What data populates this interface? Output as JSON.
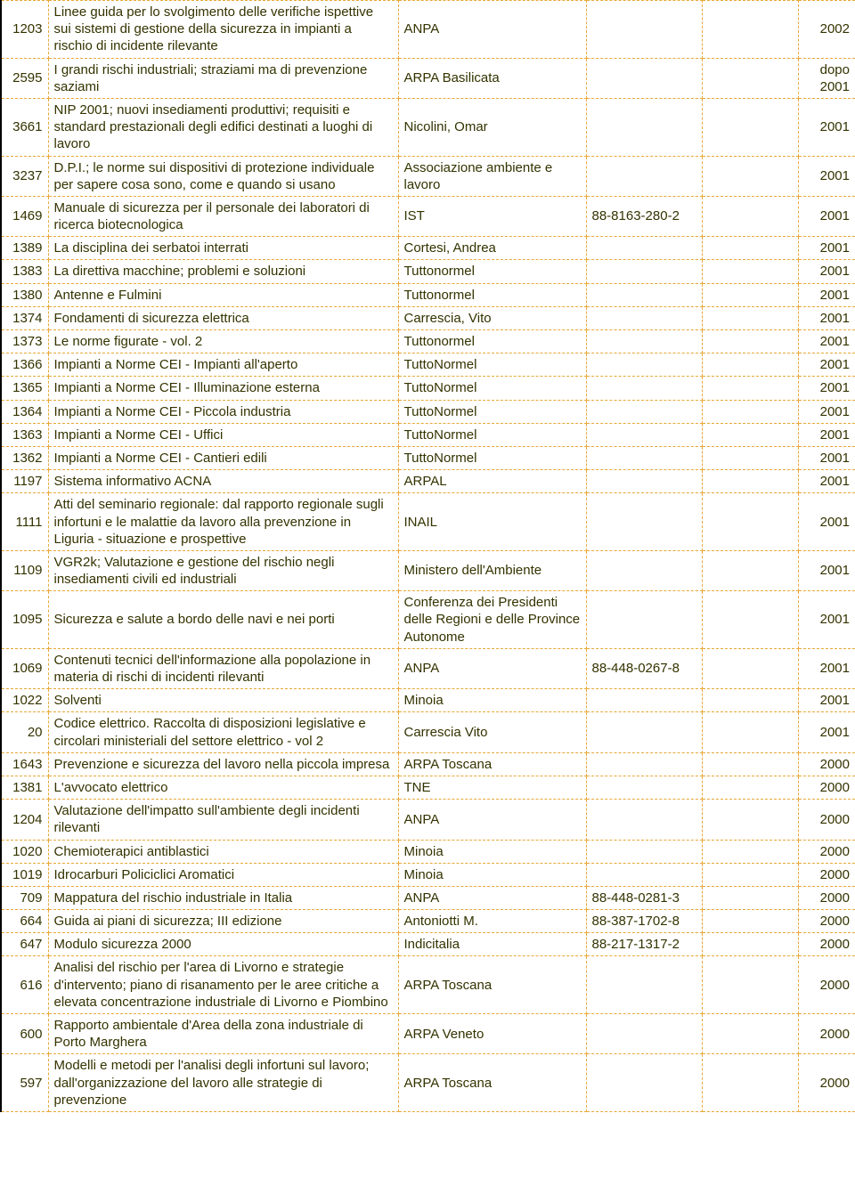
{
  "rows": [
    {
      "id": "1203",
      "title": "Linee guida per lo svolgimento delle verifiche ispettive sui sistemi di gestione della sicurezza in impianti a rischio di incidente rilevante",
      "author": "ANPA",
      "code": "",
      "extra": "",
      "year": "2002"
    },
    {
      "id": "2595",
      "title": "I grandi rischi industriali; straziami ma di prevenzione saziami",
      "author": "ARPA Basilicata",
      "code": "",
      "extra": "",
      "year": "dopo 2001"
    },
    {
      "id": "3661",
      "title": "NIP 2001; nuovi insediamenti produttivi; requisiti e standard prestazionali degli edifici destinati a luoghi di lavoro",
      "author": "Nicolini, Omar",
      "code": "",
      "extra": "",
      "year": "2001"
    },
    {
      "id": "3237",
      "title": "D.P.I.; le norme sui dispositivi di protezione individuale per sapere cosa sono, come e quando si usano",
      "author": "Associazione ambiente e lavoro",
      "code": "",
      "extra": "",
      "year": "2001"
    },
    {
      "id": "1469",
      "title": "Manuale di sicurezza per il personale dei laboratori di ricerca biotecnologica",
      "author": "IST",
      "code": "88-8163-280-2",
      "extra": "",
      "year": "2001"
    },
    {
      "id": "1389",
      "title": "La disciplina dei serbatoi interrati",
      "author": "Cortesi, Andrea",
      "code": "",
      "extra": "",
      "year": "2001"
    },
    {
      "id": "1383",
      "title": "La direttiva macchine; problemi e soluzioni",
      "author": "Tuttonormel",
      "code": "",
      "extra": "",
      "year": "2001"
    },
    {
      "id": "1380",
      "title": "Antenne e Fulmini",
      "author": "Tuttonormel",
      "code": "",
      "extra": "",
      "year": "2001"
    },
    {
      "id": "1374",
      "title": "Fondamenti di sicurezza elettrica",
      "author": "Carrescia, Vito",
      "code": "",
      "extra": "",
      "year": "2001"
    },
    {
      "id": "1373",
      "title": "Le norme figurate - vol. 2",
      "author": "Tuttonormel",
      "code": "",
      "extra": "",
      "year": "2001"
    },
    {
      "id": "1366",
      "title": "Impianti a Norme CEI - Impianti all'aperto",
      "author": "TuttoNormel",
      "code": "",
      "extra": "",
      "year": "2001"
    },
    {
      "id": "1365",
      "title": "Impianti a Norme CEI - Illuminazione esterna",
      "author": "TuttoNormel",
      "code": "",
      "extra": "",
      "year": "2001"
    },
    {
      "id": "1364",
      "title": "Impianti a Norme CEI - Piccola industria",
      "author": "TuttoNormel",
      "code": "",
      "extra": "",
      "year": "2001"
    },
    {
      "id": "1363",
      "title": "Impianti a Norme CEI - Uffici",
      "author": "TuttoNormel",
      "code": "",
      "extra": "",
      "year": "2001"
    },
    {
      "id": "1362",
      "title": "Impianti a Norme CEI - Cantieri edili",
      "author": "TuttoNormel",
      "code": "",
      "extra": "",
      "year": "2001"
    },
    {
      "id": "1197",
      "title": "Sistema informativo ACNA",
      "author": "ARPAL",
      "code": "",
      "extra": "",
      "year": "2001"
    },
    {
      "id": "1111",
      "title": "Atti del seminario regionale: dal rapporto regionale sugli infortuni e le malattie da lavoro alla prevenzione in Liguria - situazione e prospettive",
      "author": "INAIL",
      "code": "",
      "extra": "",
      "year": "2001"
    },
    {
      "id": "1109",
      "title": "VGR2k; Valutazione e gestione del rischio negli insediamenti civili ed industriali",
      "author": "Ministero dell'Ambiente",
      "code": "",
      "extra": "",
      "year": "2001"
    },
    {
      "id": "1095",
      "title": "Sicurezza e salute a bordo delle navi e nei porti",
      "author": "Conferenza dei Presidenti delle Regioni e delle Province Autonome",
      "code": "",
      "extra": "",
      "year": "2001"
    },
    {
      "id": "1069",
      "title": "Contenuti tecnici dell'informazione alla popolazione in materia di rischi di incidenti rilevanti",
      "author": "ANPA",
      "code": "88-448-0267-8",
      "extra": "",
      "year": "2001"
    },
    {
      "id": "1022",
      "title": "Solventi",
      "author": "Minoia",
      "code": "",
      "extra": "",
      "year": "2001"
    },
    {
      "id": "20",
      "title": "Codice elettrico. Raccolta di disposizioni legislative e circolari ministeriali del settore elettrico - vol 2",
      "author": "Carrescia Vito",
      "code": "",
      "extra": "",
      "year": "2001"
    },
    {
      "id": "1643",
      "title": "Prevenzione e sicurezza del lavoro nella piccola impresa",
      "author": "ARPA Toscana",
      "code": "",
      "extra": "",
      "year": "2000"
    },
    {
      "id": "1381",
      "title": "L'avvocato elettrico",
      "author": "TNE",
      "code": "",
      "extra": "",
      "year": "2000"
    },
    {
      "id": "1204",
      "title": "Valutazione dell'impatto sull'ambiente degli incidenti rilevanti",
      "author": "ANPA",
      "code": "",
      "extra": "",
      "year": "2000"
    },
    {
      "id": "1020",
      "title": "Chemioterapici antiblastici",
      "author": "Minoia",
      "code": "",
      "extra": "",
      "year": "2000"
    },
    {
      "id": "1019",
      "title": "Idrocarburi Policiclici Aromatici",
      "author": "Minoia",
      "code": "",
      "extra": "",
      "year": "2000"
    },
    {
      "id": "709",
      "title": "Mappatura del rischio industriale in Italia",
      "author": "ANPA",
      "code": "88-448-0281-3",
      "extra": "",
      "year": "2000"
    },
    {
      "id": "664",
      "title": "Guida ai piani di sicurezza; III edizione",
      "author": "Antoniotti M.",
      "code": "88-387-1702-8",
      "extra": "",
      "year": "2000"
    },
    {
      "id": "647",
      "title": "Modulo sicurezza 2000",
      "author": "Indicitalia",
      "code": "88-217-1317-2",
      "extra": "",
      "year": "2000"
    },
    {
      "id": "616",
      "title": "Analisi del rischio per l'area di Livorno e strategie d'intervento; piano di risanamento per le aree critiche a elevata concentrazione industriale di Livorno e Piombino",
      "author": "ARPA Toscana",
      "code": "",
      "extra": "",
      "year": "2000"
    },
    {
      "id": "600",
      "title": "Rapporto ambientale d'Area della zona industriale di Porto Marghera",
      "author": "ARPA Veneto",
      "code": "",
      "extra": "",
      "year": "2000"
    },
    {
      "id": "597",
      "title": "Modelli e metodi per l'analisi degli infortuni sul lavoro; dall'organizzazione del lavoro alle strategie di prevenzione",
      "author": "ARPA Toscana",
      "code": "",
      "extra": "",
      "year": "2000"
    }
  ]
}
